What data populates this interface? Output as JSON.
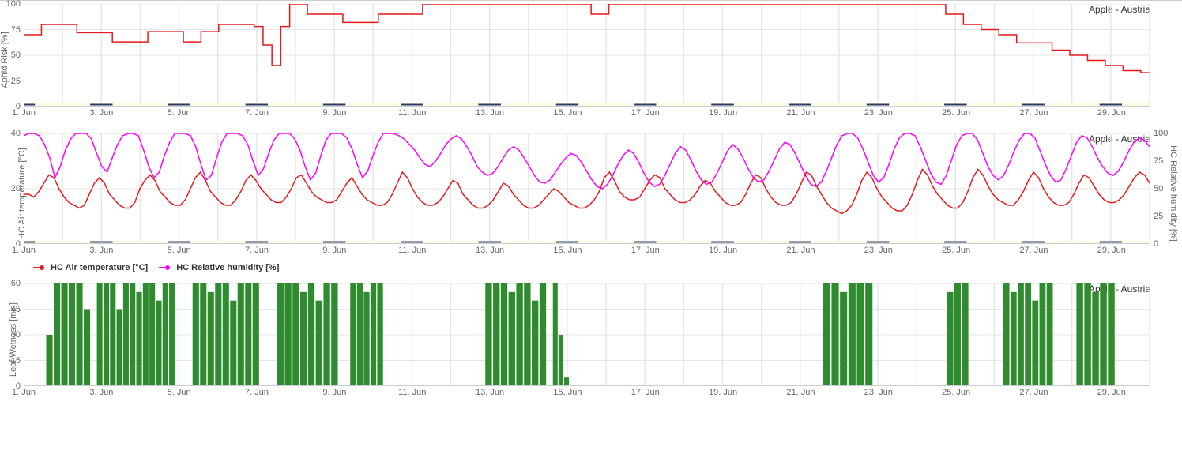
{
  "subtitle": "Apple - Austria",
  "x_axis": {
    "days": 30,
    "tick_days": [
      1,
      3,
      5,
      7,
      9,
      11,
      13,
      15,
      17,
      19,
      21,
      23,
      25,
      27,
      29
    ],
    "tick_label_suffix": ". Jun",
    "grid_color": "#e6e6e6"
  },
  "chart1": {
    "type": "line-step",
    "ylabel": "Aphid Risk [%]",
    "ylim": [
      0,
      100
    ],
    "yticks": [
      0,
      25,
      50,
      75,
      100
    ],
    "height": 130,
    "color": "#e31a1c",
    "line_width": 1.5,
    "baseline_dash_color": "#2b3a67",
    "baseline_bg": "#fcfde0",
    "series": [
      70,
      70,
      80,
      80,
      80,
      80,
      72,
      72,
      72,
      72,
      63,
      63,
      63,
      63,
      73,
      73,
      73,
      73,
      63,
      63,
      73,
      73,
      80,
      80,
      80,
      80,
      78,
      60,
      40,
      78,
      100,
      100,
      90,
      90,
      90,
      90,
      82,
      82,
      82,
      82,
      90,
      90,
      90,
      90,
      90,
      100,
      100,
      100,
      100,
      100,
      100,
      100,
      100,
      100,
      100,
      100,
      100,
      100,
      100,
      100,
      100,
      100,
      100,
      100,
      90,
      90,
      100,
      100,
      100,
      100,
      100,
      100,
      100,
      100,
      100,
      100,
      100,
      100,
      100,
      100,
      100,
      100,
      100,
      100,
      100,
      100,
      100,
      100,
      100,
      100,
      100,
      100,
      100,
      100,
      100,
      100,
      100,
      100,
      100,
      100,
      100,
      100,
      100,
      100,
      90,
      90,
      80,
      80,
      75,
      75,
      70,
      70,
      62,
      62,
      62,
      62,
      55,
      55,
      50,
      50,
      45,
      45,
      40,
      40,
      35,
      35,
      33,
      33
    ]
  },
  "chart2": {
    "type": "line",
    "ylabel_left": "HC Air temperature [°C]",
    "ylabel_right": "HC Relative humidity [%]",
    "ylim_left": [
      0,
      40
    ],
    "yticks_left": [
      0,
      20,
      40
    ],
    "ylim_right": [
      0,
      100
    ],
    "yticks_right": [
      0,
      25,
      50,
      75,
      100
    ],
    "height": 140,
    "legend": [
      {
        "label": "HC Air temperature [°C]",
        "color": "#e31a1c"
      },
      {
        "label": "HC Relative humidity [%]",
        "color": "#ff00ff"
      }
    ],
    "temp": {
      "color": "#e31a1c",
      "line_width": 1.5,
      "series": [
        18,
        18,
        17,
        19,
        22,
        25,
        24,
        20,
        17,
        15,
        14,
        13,
        14,
        18,
        22,
        24,
        22,
        18,
        16,
        14,
        13,
        13,
        15,
        20,
        23,
        25,
        23,
        19,
        17,
        15,
        14,
        14,
        16,
        20,
        24,
        26,
        23,
        19,
        17,
        15,
        14,
        14,
        16,
        19,
        23,
        25,
        23,
        20,
        18,
        16,
        15,
        15,
        17,
        20,
        24,
        25,
        22,
        19,
        17,
        16,
        15,
        15,
        16,
        19,
        22,
        24,
        21,
        18,
        16,
        15,
        14,
        14,
        15,
        18,
        22,
        26,
        24,
        20,
        17,
        15,
        14,
        14,
        15,
        17,
        20,
        23,
        22,
        18,
        16,
        14,
        13,
        13,
        14,
        16,
        19,
        22,
        21,
        18,
        16,
        14,
        13,
        13,
        14,
        16,
        18,
        20,
        19,
        17,
        15,
        14,
        13,
        13,
        14,
        16,
        19,
        24,
        26,
        23,
        19,
        17,
        16,
        16,
        17,
        20,
        23,
        25,
        24,
        20,
        18,
        16,
        15,
        15,
        16,
        18,
        21,
        23,
        22,
        19,
        17,
        15,
        14,
        14,
        15,
        18,
        22,
        25,
        24,
        20,
        17,
        15,
        14,
        14,
        15,
        18,
        22,
        26,
        25,
        21,
        18,
        15,
        13,
        12,
        11,
        12,
        14,
        18,
        23,
        26,
        24,
        20,
        17,
        15,
        13,
        12,
        12,
        14,
        18,
        23,
        27,
        25,
        21,
        18,
        16,
        14,
        13,
        13,
        15,
        19,
        24,
        27,
        25,
        21,
        18,
        16,
        15,
        14,
        14,
        16,
        19,
        23,
        26,
        24,
        20,
        17,
        15,
        14,
        14,
        15,
        18,
        22,
        25,
        24,
        21,
        18,
        16,
        15,
        15,
        16,
        18,
        21,
        24,
        26,
        25,
        22
      ]
    },
    "humidity": {
      "color": "#ff00ff",
      "line_width": 1.5,
      "series": [
        98,
        100,
        100,
        98,
        90,
        78,
        60,
        70,
        85,
        95,
        100,
        100,
        100,
        95,
        82,
        70,
        65,
        78,
        90,
        98,
        100,
        100,
        98,
        85,
        70,
        60,
        65,
        80,
        92,
        100,
        100,
        100,
        98,
        88,
        72,
        58,
        62,
        78,
        92,
        100,
        100,
        100,
        98,
        90,
        75,
        62,
        68,
        82,
        94,
        100,
        100,
        100,
        95,
        85,
        70,
        58,
        64,
        80,
        94,
        100,
        100,
        100,
        96,
        86,
        72,
        60,
        66,
        80,
        92,
        100,
        100,
        100,
        98,
        95,
        90,
        85,
        78,
        72,
        70,
        75,
        82,
        90,
        95,
        98,
        95,
        88,
        80,
        70,
        65,
        62,
        64,
        70,
        78,
        85,
        88,
        85,
        78,
        70,
        62,
        56,
        55,
        58,
        65,
        72,
        78,
        82,
        80,
        74,
        66,
        58,
        52,
        50,
        54,
        62,
        72,
        80,
        85,
        82,
        74,
        64,
        56,
        52,
        54,
        62,
        72,
        82,
        88,
        85,
        76,
        66,
        58,
        54,
        56,
        64,
        74,
        84,
        90,
        86,
        78,
        68,
        60,
        56,
        58,
        66,
        76,
        86,
        92,
        90,
        82,
        72,
        62,
        54,
        52,
        56,
        66,
        78,
        90,
        98,
        100,
        100,
        96,
        86,
        74,
        62,
        56,
        60,
        72,
        86,
        96,
        100,
        100,
        98,
        88,
        76,
        64,
        56,
        54,
        62,
        76,
        90,
        98,
        100,
        100,
        94,
        82,
        70,
        62,
        58,
        62,
        72,
        84,
        94,
        100,
        100,
        96,
        84,
        72,
        62,
        56,
        58,
        68,
        80,
        92,
        98,
        96,
        88,
        78,
        70,
        64,
        62,
        66,
        74,
        84,
        92,
        96,
        94,
        88
      ]
    }
  },
  "chart3": {
    "type": "bar",
    "ylabel": "Leaf Wetness [min]",
    "ylim": [
      0,
      60
    ],
    "yticks": [
      0,
      15,
      30,
      45,
      60
    ],
    "height": 130,
    "color": "#2e8b2e",
    "series_blocks": [
      {
        "start": 0.02,
        "end": 0.06,
        "pattern": [
          30,
          60,
          60,
          60,
          60,
          45
        ]
      },
      {
        "start": 0.065,
        "end": 0.135,
        "pattern": [
          60,
          60,
          60,
          45,
          60,
          60,
          55,
          60,
          60,
          50,
          60,
          60
        ]
      },
      {
        "start": 0.15,
        "end": 0.21,
        "pattern": [
          60,
          60,
          55,
          60,
          60,
          50,
          60,
          60,
          60
        ]
      },
      {
        "start": 0.225,
        "end": 0.28,
        "pattern": [
          60,
          60,
          60,
          55,
          60,
          50,
          60,
          60
        ]
      },
      {
        "start": 0.29,
        "end": 0.32,
        "pattern": [
          60,
          60,
          55,
          60,
          60
        ]
      },
      {
        "start": 0.41,
        "end": 0.465,
        "pattern": [
          60,
          60,
          60,
          55,
          60,
          60,
          50,
          60
        ]
      },
      {
        "start": 0.47,
        "end": 0.485,
        "pattern": [
          60,
          30,
          5
        ]
      },
      {
        "start": 0.71,
        "end": 0.755,
        "pattern": [
          60,
          60,
          55,
          60,
          60,
          60
        ]
      },
      {
        "start": 0.82,
        "end": 0.84,
        "pattern": [
          55,
          60,
          60
        ]
      },
      {
        "start": 0.87,
        "end": 0.915,
        "pattern": [
          60,
          55,
          60,
          60,
          50,
          60,
          60
        ]
      },
      {
        "start": 0.935,
        "end": 0.97,
        "pattern": [
          60,
          60,
          55,
          60,
          60
        ]
      }
    ]
  }
}
